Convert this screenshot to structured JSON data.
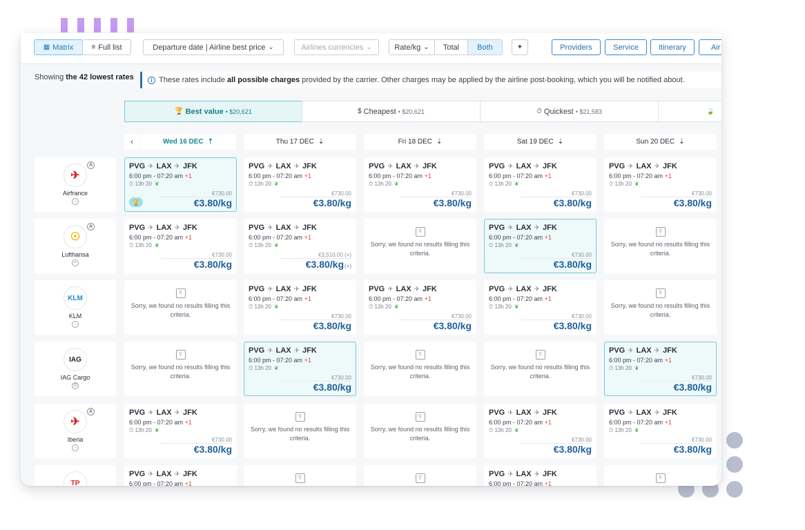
{
  "toolbar": {
    "matrix_label": "Matrix",
    "full_list_label": "Full list",
    "departure_dropdown": "Departure date | Airline best price",
    "currencies_dropdown": "Airlines currencies",
    "rate_dropdown": "Rate/kg",
    "total_label": "Total",
    "both_label": "Both",
    "providers_label": "Providers",
    "service_label": "Service",
    "itinerary_label": "Itinerary",
    "airline_label": "Air"
  },
  "notice": {
    "showing_prefix": "Showing",
    "showing_bold": "the 42 lowest rates",
    "info_prefix": "These rates include",
    "info_bold": "all possible charges",
    "info_suffix": "provided by the carrier. Other charges may be applied by the airline post-booking, which you will be notified about."
  },
  "sort_tabs": [
    {
      "label": "Best value",
      "sub": "• $20,621",
      "icon": "🏆"
    },
    {
      "label": "Cheapest",
      "sub": "• $20,621",
      "icon": "$"
    },
    {
      "label": "Quickest",
      "sub": "• $21,583",
      "icon": "⏱"
    },
    {
      "label": "",
      "sub": "",
      "icon": "🍃"
    }
  ],
  "days": [
    {
      "label": "Wed 16 DEC",
      "sort": "⇡"
    },
    {
      "label": "Thu 17 DEC",
      "sort": "⇣"
    },
    {
      "label": "Fri 18 DEC",
      "sort": "⇣"
    },
    {
      "label": "Sat 19 DEC",
      "sort": "⇣"
    },
    {
      "label": "Sun 20 DEC",
      "sort": "⇣"
    }
  ],
  "prev_day": "‹",
  "common": {
    "route_from": "PVG",
    "route_via": "LAX",
    "route_to": "JFK",
    "times": "6:00 pm - 07:20 am",
    "plus_day": "+1",
    "duration": "13h 20",
    "old_price": "€730.00",
    "price": "€3.80/kg",
    "empty_text": "Sorry, we found no results filling this criteria."
  },
  "airlines": [
    {
      "name": "Airfrance",
      "logo_text": "",
      "logo_color": "#d9252a"
    },
    {
      "name": "Lufthansa",
      "logo_text": "",
      "logo_color": "#f2b300"
    },
    {
      "name": "KLM",
      "logo_text": "KLM",
      "logo_color": "#1e8ed1"
    },
    {
      "name": "IAG Cargo",
      "logo_text": "IAG",
      "logo_color": "#222222"
    },
    {
      "name": "Iberia",
      "logo_text": "",
      "logo_color": "#d9252a"
    },
    {
      "name": "",
      "logo_text": "TP",
      "logo_color": "#d9252a"
    }
  ],
  "special": {
    "lufthansa_thu_old": "€3,510.00 (+)",
    "lufthansa_thu_note": "(+)"
  }
}
